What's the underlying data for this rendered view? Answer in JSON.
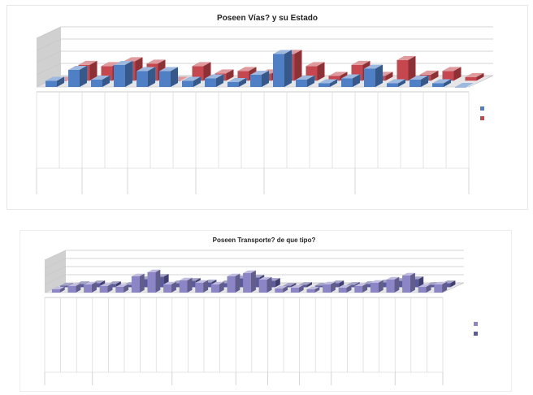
{
  "chart_data": [
    {
      "type": "bar",
      "title": "Poseen Vías? y su Estado",
      "xlabel": "",
      "ylabel": "",
      "ylim": [
        0,
        4
      ],
      "grid": true,
      "legend_position": "right",
      "bar_style": "3d",
      "categories": [
        "",
        "",
        "",
        "",
        "",
        "",
        "",
        "",
        "",
        "",
        "",
        "",
        "",
        "",
        "",
        "",
        "",
        "",
        ""
      ],
      "series": [
        {
          "name": "",
          "values": [
            0.5,
            1.4,
            0.6,
            1.8,
            1.3,
            1.3,
            0.5,
            0.7,
            0.4,
            1.0,
            2.7,
            0.6,
            0.3,
            0.7,
            1.5,
            0.3,
            0.6,
            0.3,
            0.0
          ]
        },
        {
          "name": "",
          "values": [
            0.0,
            1.3,
            1.2,
            1.6,
            1.4,
            0.0,
            1.2,
            0.6,
            0.8,
            0.6,
            2.2,
            1.2,
            0.4,
            1.3,
            0.4,
            1.7,
            0.5,
            0.8,
            0.3
          ]
        }
      ],
      "colors": [
        "#4f7fc4",
        "#c6474d"
      ]
    },
    {
      "type": "bar",
      "title": "Poseen Transporte? de que tipo?",
      "xlabel": "",
      "ylabel": "",
      "ylim": [
        0,
        4
      ],
      "grid": true,
      "legend_position": "right",
      "bar_style": "3d",
      "categories": [
        "",
        "",
        "",
        "",
        "",
        "",
        "",
        "",
        "",
        "",
        "",
        "",
        "",
        "",
        "",
        "",
        "",
        "",
        "",
        "",
        "",
        "",
        "",
        "",
        ""
      ],
      "series": [
        {
          "name": "",
          "values": [
            0.4,
            0.8,
            1.0,
            0.8,
            0.7,
            2.0,
            2.5,
            1.0,
            1.5,
            1.2,
            1.0,
            2.0,
            2.4,
            1.6,
            0.5,
            0.6,
            0.4,
            1.0,
            0.6,
            0.8,
            1.2,
            1.6,
            2.1,
            0.7,
            1.0
          ]
        },
        {
          "name": "",
          "values": [
            0.2,
            0.4,
            0.5,
            0.4,
            0.3,
            1.0,
            1.3,
            0.5,
            0.8,
            0.6,
            0.5,
            1.1,
            1.2,
            0.8,
            0.2,
            0.3,
            0.2,
            0.5,
            0.3,
            0.4,
            0.6,
            0.8,
            1.0,
            0.3,
            0.5
          ]
        }
      ],
      "colors": [
        "#8c86c6",
        "#5b5a9c"
      ]
    }
  ]
}
